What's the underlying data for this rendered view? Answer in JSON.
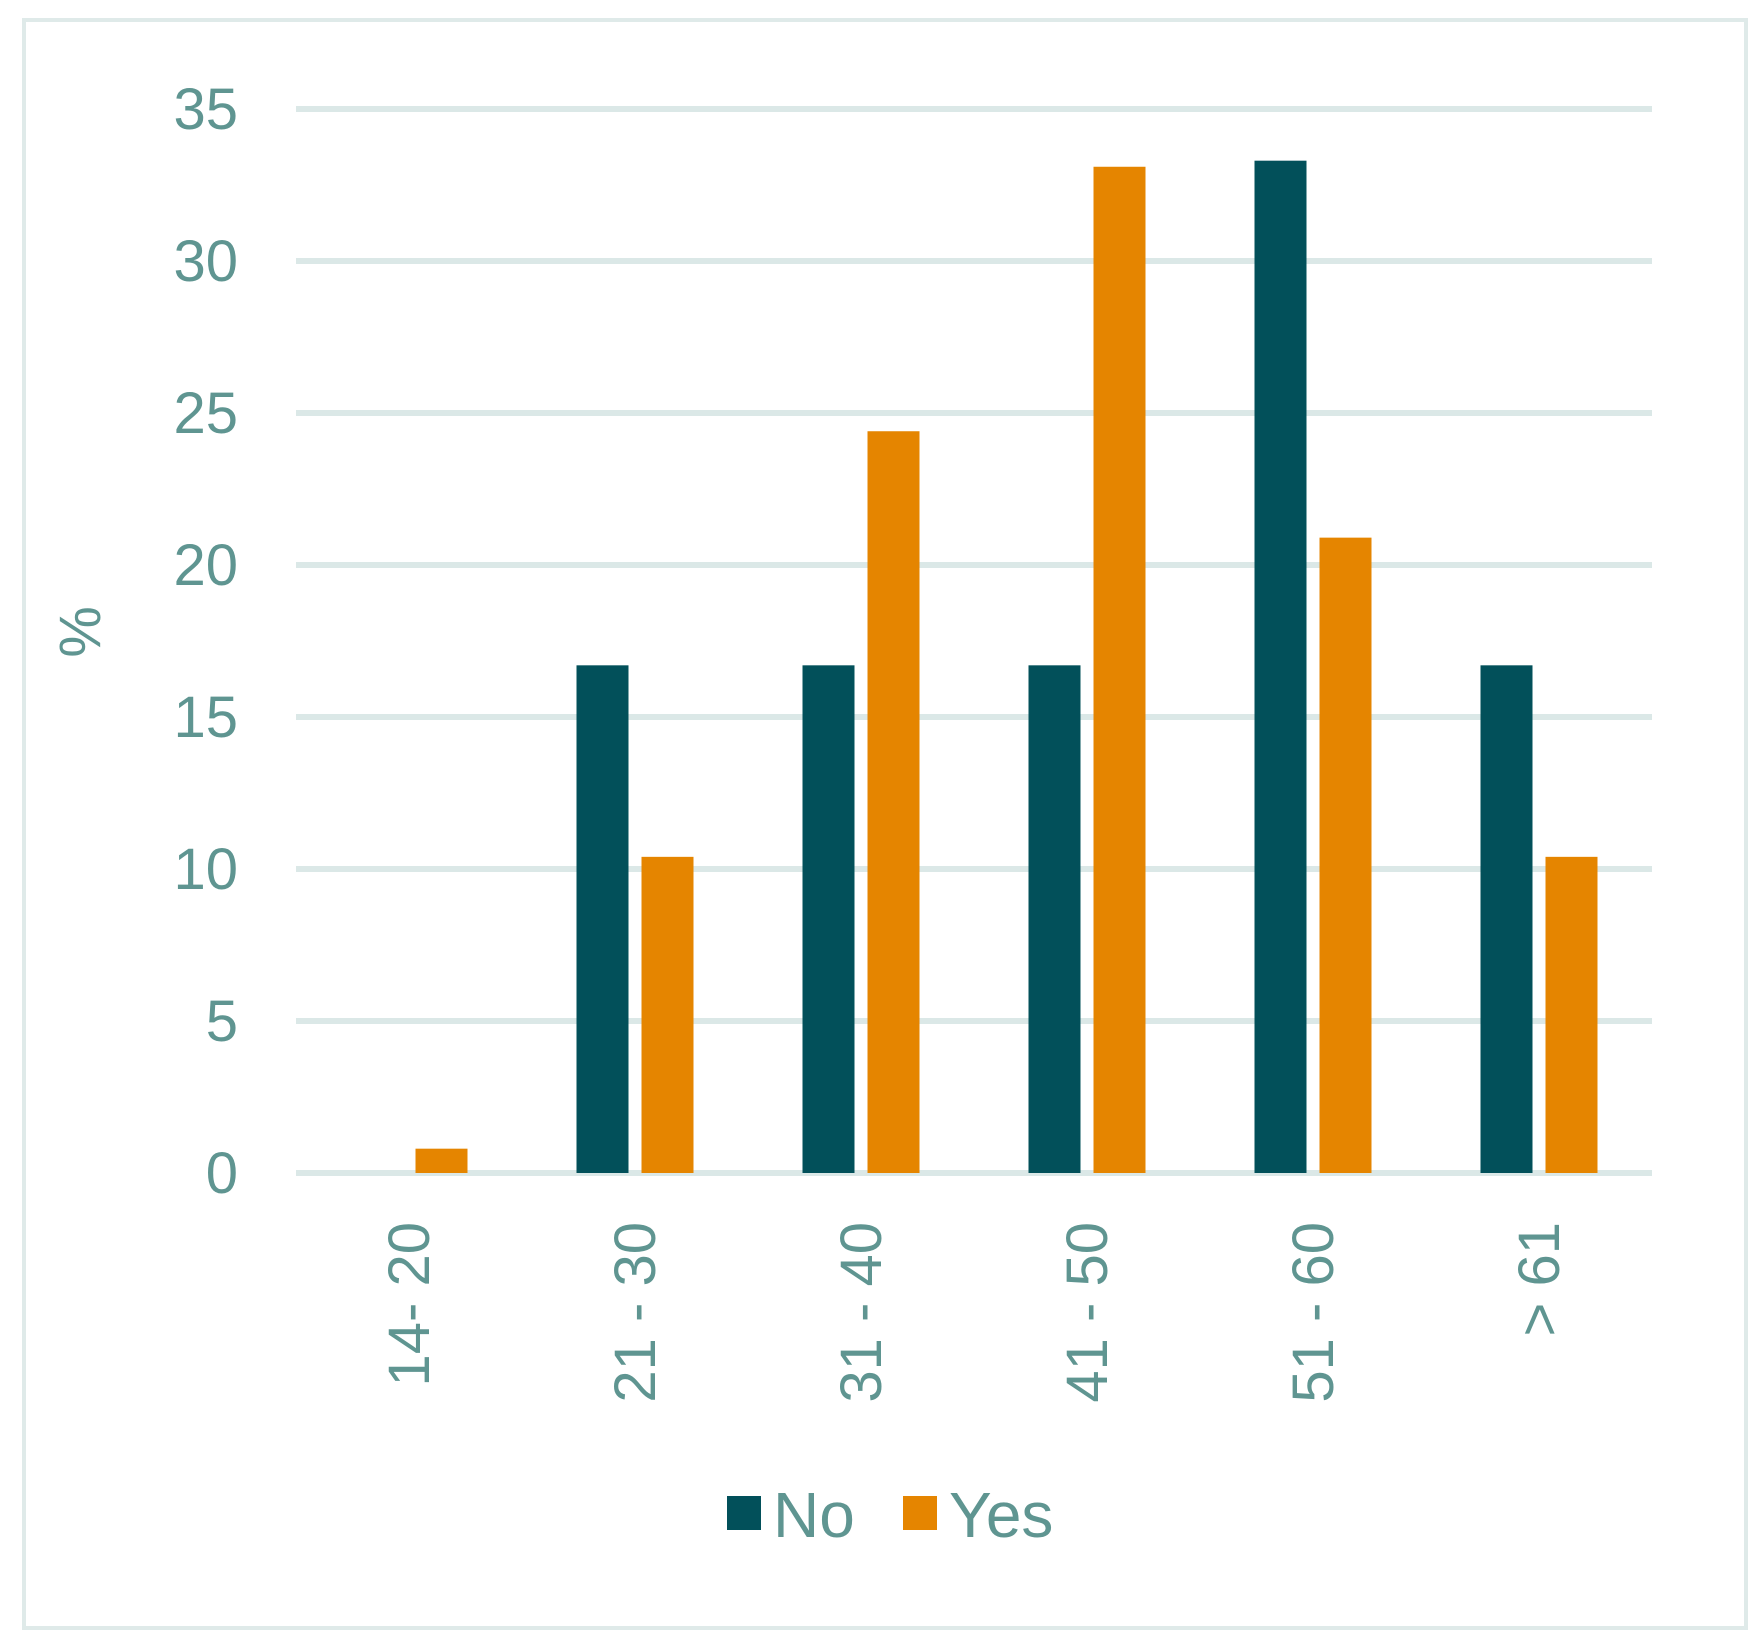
{
  "chart_data": {
    "type": "bar",
    "title": "",
    "xlabel": "",
    "ylabel": "%",
    "categories": [
      "14- 20",
      "21 - 30",
      "31 - 40",
      "41 - 50",
      "51 - 60",
      "> 61"
    ],
    "series": [
      {
        "name": "No",
        "color": "#02505a",
        "values": [
          0,
          16.7,
          16.7,
          16.7,
          33.3,
          16.7
        ]
      },
      {
        "name": "Yes",
        "color": "#e58500",
        "values": [
          0.8,
          10.4,
          24.4,
          33.1,
          20.9,
          10.4
        ]
      }
    ],
    "ylim": [
      0,
      35
    ],
    "yticks": [
      "0",
      "5",
      "10",
      "15",
      "20",
      "25",
      "30",
      "35"
    ],
    "grid": true,
    "legend": "bottom-center"
  }
}
